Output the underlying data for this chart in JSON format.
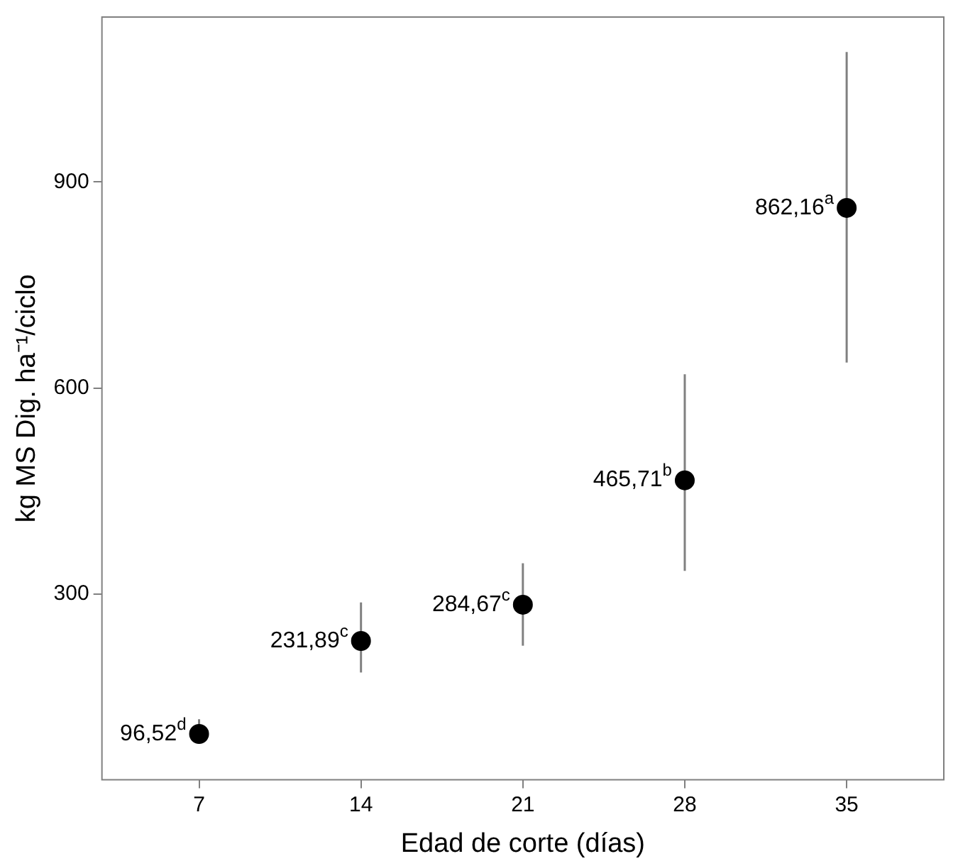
{
  "chart_data": {
    "type": "scatter",
    "xlabel": "Edad de corte (días)",
    "ylabel": "kg MS Dig. ha⁻¹/ciclo",
    "x": [
      7,
      14,
      21,
      28,
      35
    ],
    "series": [
      {
        "color": "#000000",
        "values": [
          96.52,
          231.89,
          284.67,
          465.71,
          862.16
        ],
        "errors": [
          [
            88,
            118
          ],
          [
            186,
            288
          ],
          [
            225,
            345
          ],
          [
            334,
            620
          ],
          [
            637,
            1089
          ]
        ],
        "value_labels": [
          "96,52$^{d}$",
          "231,89$^{c}$",
          "284,67$^{c}$",
          "465,71$^{b}$",
          "862,16$^{a}$"
        ]
      }
    ],
    "xlim": [
      2.8,
      39.2
    ],
    "ylim": [
      30,
      1140
    ],
    "xticks": [
      7,
      14,
      21,
      28,
      35
    ],
    "yticks": [
      300,
      600,
      900
    ],
    "grid": false,
    "legend": false,
    "marker": "circle"
  }
}
